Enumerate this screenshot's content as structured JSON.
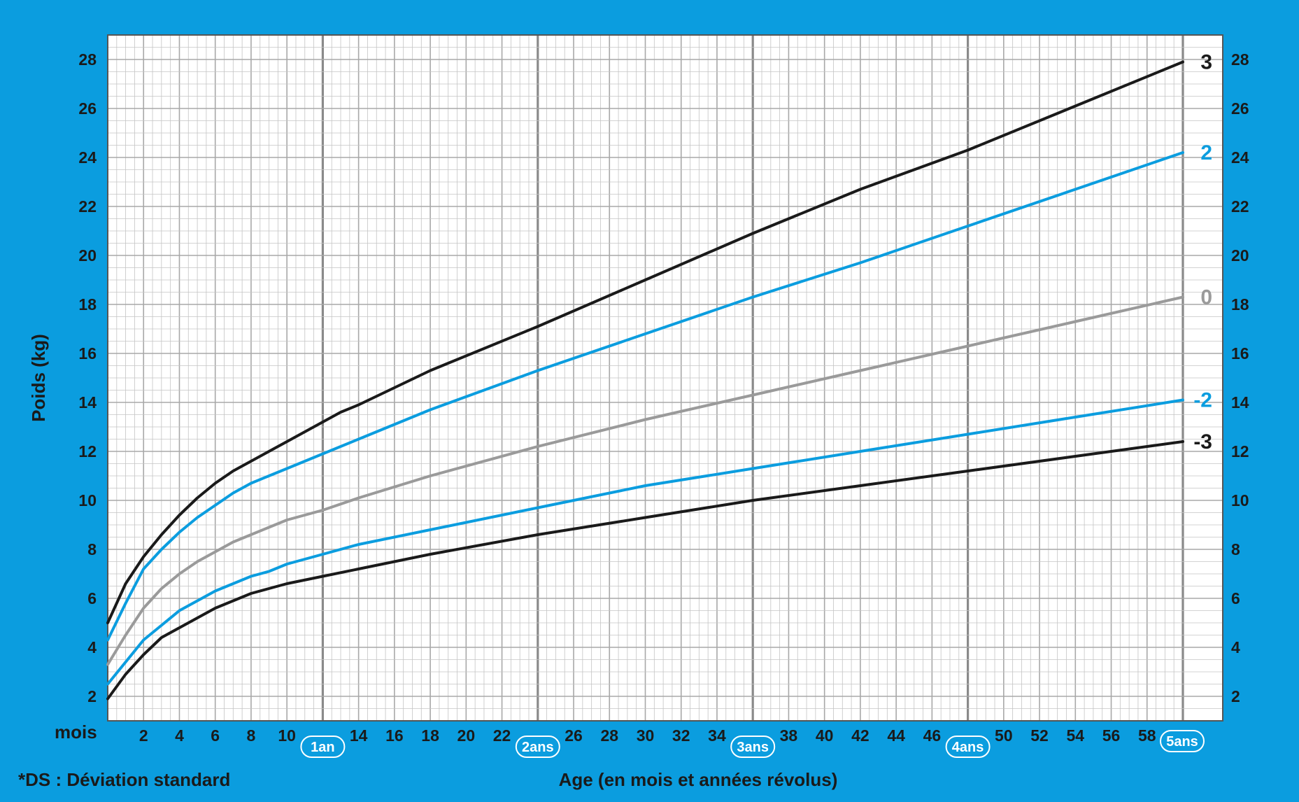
{
  "chart_data": {
    "type": "line",
    "xlabel": "Age (en mois et années révolus)",
    "ylabel": "Poids (kg)",
    "x_unit_label": "mois",
    "footnote": "*DS : Déviation standard",
    "xlim": [
      0,
      60
    ],
    "ylim": [
      1,
      29
    ],
    "x_ticks": [
      2,
      4,
      6,
      8,
      10,
      14,
      16,
      18,
      20,
      22,
      26,
      28,
      30,
      32,
      34,
      38,
      40,
      42,
      44,
      46,
      50,
      52,
      54,
      56,
      58
    ],
    "year_labels": [
      {
        "x": 12,
        "label": "1an"
      },
      {
        "x": 24,
        "label": "2ans"
      },
      {
        "x": 36,
        "label": "3ans"
      },
      {
        "x": 48,
        "label": "4ans"
      },
      {
        "x": 60,
        "label": "5ans"
      }
    ],
    "y_ticks": [
      2,
      4,
      6,
      8,
      10,
      12,
      14,
      16,
      18,
      20,
      22,
      24,
      26,
      28
    ],
    "grid": true,
    "colors": {
      "black": "#1a1a1a",
      "blue": "#0b9ddf",
      "gray": "#9a9a9a",
      "frame": "#0b9ddf"
    },
    "series": [
      {
        "name": "3",
        "color": "#1a1a1a",
        "x": [
          0,
          1,
          2,
          3,
          4,
          5,
          6,
          7,
          8,
          9,
          10,
          11,
          12,
          13,
          14,
          18,
          24,
          30,
          36,
          42,
          48,
          54,
          60
        ],
        "y": [
          5.0,
          6.6,
          7.7,
          8.6,
          9.4,
          10.1,
          10.7,
          11.2,
          11.6,
          12.0,
          12.4,
          12.8,
          13.2,
          13.6,
          13.9,
          15.3,
          17.1,
          19.0,
          20.9,
          22.7,
          24.3,
          26.1,
          27.9
        ]
      },
      {
        "name": "2",
        "color": "#0b9ddf",
        "x": [
          0,
          1,
          2,
          3,
          4,
          5,
          6,
          7,
          8,
          9,
          10,
          11,
          12,
          14,
          18,
          24,
          30,
          36,
          42,
          48,
          54,
          60
        ],
        "y": [
          4.3,
          5.8,
          7.2,
          8.0,
          8.7,
          9.3,
          9.8,
          10.3,
          10.7,
          11.0,
          11.3,
          11.6,
          11.9,
          12.5,
          13.7,
          15.3,
          16.8,
          18.3,
          19.7,
          21.2,
          22.7,
          24.2
        ]
      },
      {
        "name": "0",
        "color": "#9a9a9a",
        "x": [
          0,
          1,
          2,
          3,
          4,
          5,
          6,
          7,
          8,
          9,
          10,
          12,
          14,
          18,
          24,
          30,
          36,
          42,
          48,
          54,
          60
        ],
        "y": [
          3.3,
          4.5,
          5.6,
          6.4,
          7.0,
          7.5,
          7.9,
          8.3,
          8.6,
          8.9,
          9.2,
          9.6,
          10.1,
          11.0,
          12.2,
          13.3,
          14.3,
          15.3,
          16.3,
          17.3,
          18.3
        ]
      },
      {
        "name": "-2",
        "color": "#0b9ddf",
        "x": [
          0,
          1,
          2,
          3,
          4,
          5,
          6,
          7,
          8,
          9,
          10,
          12,
          14,
          18,
          24,
          30,
          36,
          42,
          48,
          54,
          60
        ],
        "y": [
          2.5,
          3.4,
          4.3,
          4.9,
          5.5,
          5.9,
          6.3,
          6.6,
          6.9,
          7.1,
          7.4,
          7.8,
          8.2,
          8.8,
          9.7,
          10.6,
          11.3,
          12.0,
          12.7,
          13.4,
          14.1
        ]
      },
      {
        "name": "-3",
        "color": "#1a1a1a",
        "x": [
          0,
          1,
          2,
          3,
          4,
          5,
          6,
          7,
          8,
          9,
          10,
          12,
          14,
          18,
          24,
          30,
          36,
          42,
          48,
          54,
          60
        ],
        "y": [
          1.9,
          2.9,
          3.7,
          4.4,
          4.8,
          5.2,
          5.6,
          5.9,
          6.2,
          6.4,
          6.6,
          6.9,
          7.2,
          7.8,
          8.6,
          9.3,
          10.0,
          10.6,
          11.2,
          11.8,
          12.4
        ]
      }
    ]
  }
}
